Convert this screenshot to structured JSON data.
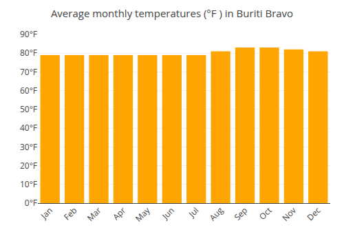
{
  "chart_data": {
    "type": "bar",
    "title": "Average monthly temperatures (°F ) in Buriti Bravo",
    "categories": [
      "Jan",
      "Feb",
      "Mar",
      "Apr",
      "May",
      "Jun",
      "Jul",
      "Aug",
      "Sep",
      "Oct",
      "Nov",
      "Dec"
    ],
    "values": [
      79,
      79,
      79,
      79,
      79,
      79,
      79,
      81,
      83,
      83,
      82,
      81
    ],
    "color": "#FFA500",
    "ylim": [
      0,
      90
    ],
    "yticks": [
      {
        "value": 0,
        "label": "0°F"
      },
      {
        "value": 10,
        "label": "10°F"
      },
      {
        "value": 20,
        "label": "20°F"
      },
      {
        "value": 30,
        "label": "30°F"
      },
      {
        "value": 40,
        "label": "40°F"
      },
      {
        "value": 50,
        "label": "50°F"
      },
      {
        "value": 60,
        "label": "60°F"
      },
      {
        "value": 70,
        "label": "70°F"
      },
      {
        "value": 80,
        "label": "80°F"
      },
      {
        "value": 90,
        "label": "90°F"
      }
    ],
    "grid": true
  }
}
